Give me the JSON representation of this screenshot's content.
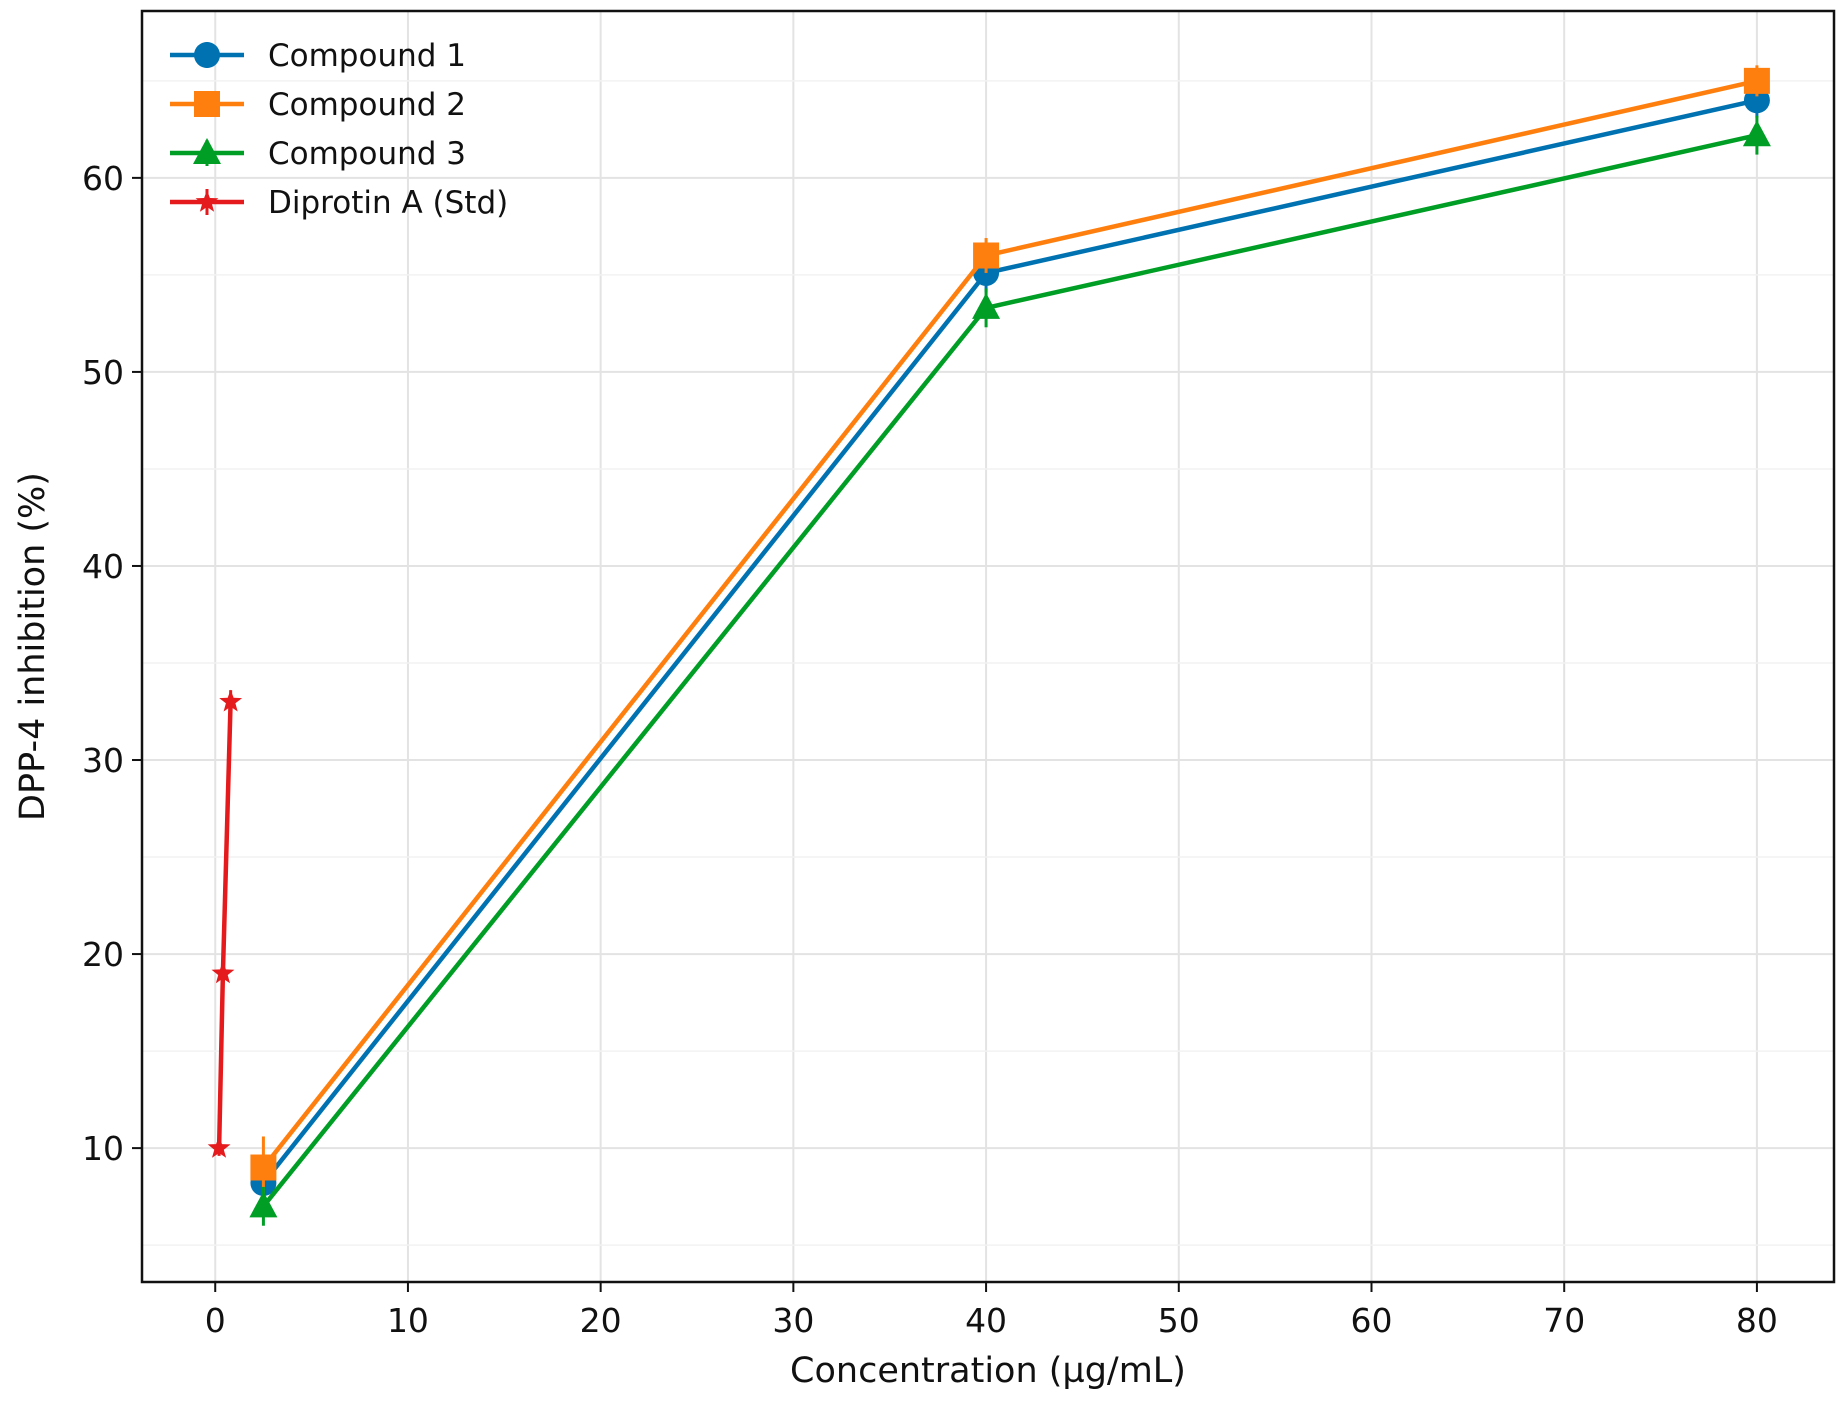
{
  "chart_data": {
    "type": "line",
    "title": "",
    "xlabel": "Concentration (µg/mL)",
    "ylabel": "DPP-4 inhibition (%)",
    "xlim": [
      -3.8,
      84
    ],
    "ylim": [
      3.1,
      68.6
    ],
    "x_ticks": [
      0,
      10,
      20,
      30,
      40,
      50,
      60,
      70,
      80
    ],
    "y_ticks": [
      10,
      20,
      30,
      40,
      50,
      60
    ],
    "grid": true,
    "legend_position": "top-left",
    "series": [
      {
        "name": "Compound 1",
        "color": "#0072B2",
        "marker": "circle",
        "x": [
          2.5,
          40,
          80
        ],
        "y": [
          8.2,
          55.1,
          64.0
        ],
        "error": [
          0.8,
          1.0,
          0.9
        ]
      },
      {
        "name": "Compound 2",
        "color": "#FF7F0E",
        "marker": "square",
        "x": [
          2.5,
          40,
          80
        ],
        "y": [
          9.0,
          56.0,
          65.0
        ],
        "error": [
          1.6,
          0.9,
          0.8
        ]
      },
      {
        "name": "Compound 3",
        "color": "#009E25",
        "marker": "triangle",
        "x": [
          2.5,
          40,
          80
        ],
        "y": [
          7.0,
          53.3,
          62.2
        ],
        "error": [
          1.0,
          1.0,
          1.0
        ]
      },
      {
        "name": "Diprotin A (Std)",
        "color": "#E41A1C",
        "marker": "star",
        "x": [
          0.2,
          0.4,
          0.8
        ],
        "y": [
          10.0,
          19.0,
          33.0
        ],
        "error": [
          0.4,
          0.6,
          0.6
        ]
      }
    ]
  }
}
